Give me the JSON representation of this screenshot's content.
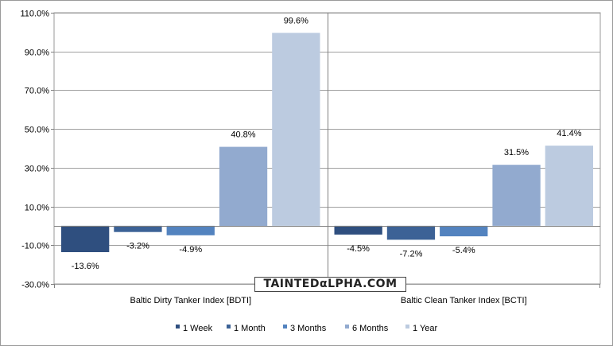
{
  "chart_data": {
    "type": "bar",
    "title": "",
    "xlabel": "",
    "ylabel": "",
    "ylim": [
      -30,
      110
    ],
    "yticks": [
      -30,
      -10,
      10,
      30,
      50,
      70,
      90,
      110
    ],
    "ytick_labels": [
      "-30.0%",
      "-10.0%",
      "10.0%",
      "30.0%",
      "50.0%",
      "70.0%",
      "90.0%",
      "110.0%"
    ],
    "grid": true,
    "legend_position": "bottom",
    "categories": [
      "Baltic Dirty Tanker Index [BDTI]",
      "Baltic Clean Tanker Index [BCTI]"
    ],
    "series": [
      {
        "name": "1 Week",
        "color": "#2f4f7f",
        "values": [
          -13.6,
          -4.5
        ],
        "labels": [
          "-13.6%",
          "-4.5%"
        ]
      },
      {
        "name": "1 Month",
        "color": "#3c6296",
        "values": [
          -3.2,
          -7.2
        ],
        "labels": [
          "-3.2%",
          "-7.2%"
        ]
      },
      {
        "name": "3 Months",
        "color": "#5383bf",
        "values": [
          -4.9,
          -5.4
        ],
        "labels": [
          "-4.9%",
          "-5.4%"
        ]
      },
      {
        "name": "6 Months",
        "color": "#92aacf",
        "values": [
          40.8,
          31.5
        ],
        "labels": [
          "40.8%",
          "31.5%"
        ]
      },
      {
        "name": "1 Year",
        "color": "#bccbe0",
        "values": [
          99.6,
          41.4
        ],
        "labels": [
          "99.6%",
          "41.4%"
        ]
      }
    ]
  },
  "watermark": {
    "text": "TAINTEDαLPHA.COM"
  }
}
